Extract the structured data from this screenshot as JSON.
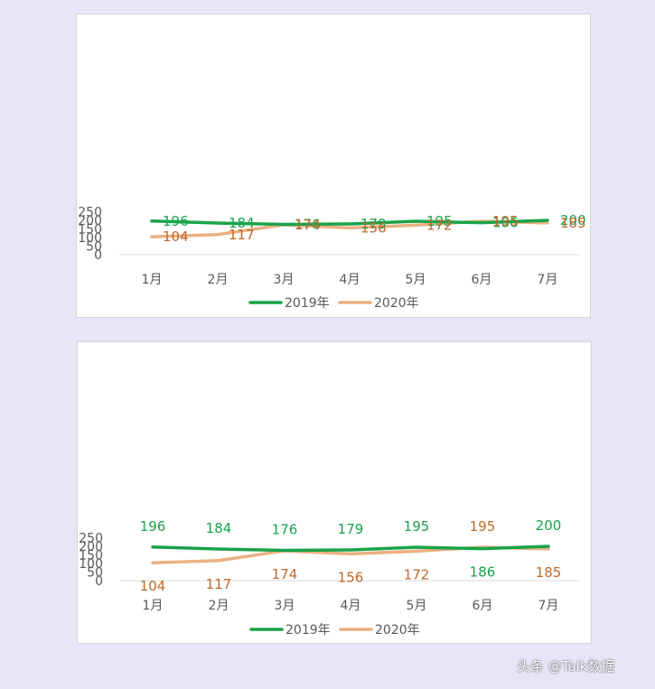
{
  "colors": {
    "series_2019": "#1aa34a",
    "series_2020": "#eab183",
    "label_2020": "#c0692a",
    "axis_text": "#595959",
    "axis_line": "#d9d9d9"
  },
  "chart_data": [
    {
      "type": "line",
      "categories": [
        "1月",
        "2月",
        "3月",
        "4月",
        "5月",
        "6月",
        "7月"
      ],
      "series": [
        {
          "name": "2019年",
          "values": [
            196,
            184,
            176,
            179,
            195,
            186,
            200
          ]
        },
        {
          "name": "2020年",
          "values": [
            104,
            117,
            174,
            156,
            172,
            195,
            185
          ]
        }
      ],
      "ylim": [
        0,
        250
      ],
      "yticks": [
        0,
        50,
        100,
        150,
        200,
        250
      ],
      "grid": false,
      "legend": "bottom",
      "data_labels": "right"
    },
    {
      "type": "line",
      "categories": [
        "1月",
        "2月",
        "3月",
        "4月",
        "5月",
        "6月",
        "7月"
      ],
      "series": [
        {
          "name": "2019年",
          "values": [
            196,
            184,
            176,
            179,
            195,
            186,
            200
          ]
        },
        {
          "name": "2020年",
          "values": [
            104,
            117,
            174,
            156,
            172,
            195,
            185
          ]
        }
      ],
      "ylim": [
        0,
        250
      ],
      "yticks": [
        0,
        50,
        100,
        150,
        200,
        250
      ],
      "grid": false,
      "legend": "bottom",
      "data_labels": "above-below"
    }
  ],
  "watermark": "头条 @Talk数据"
}
